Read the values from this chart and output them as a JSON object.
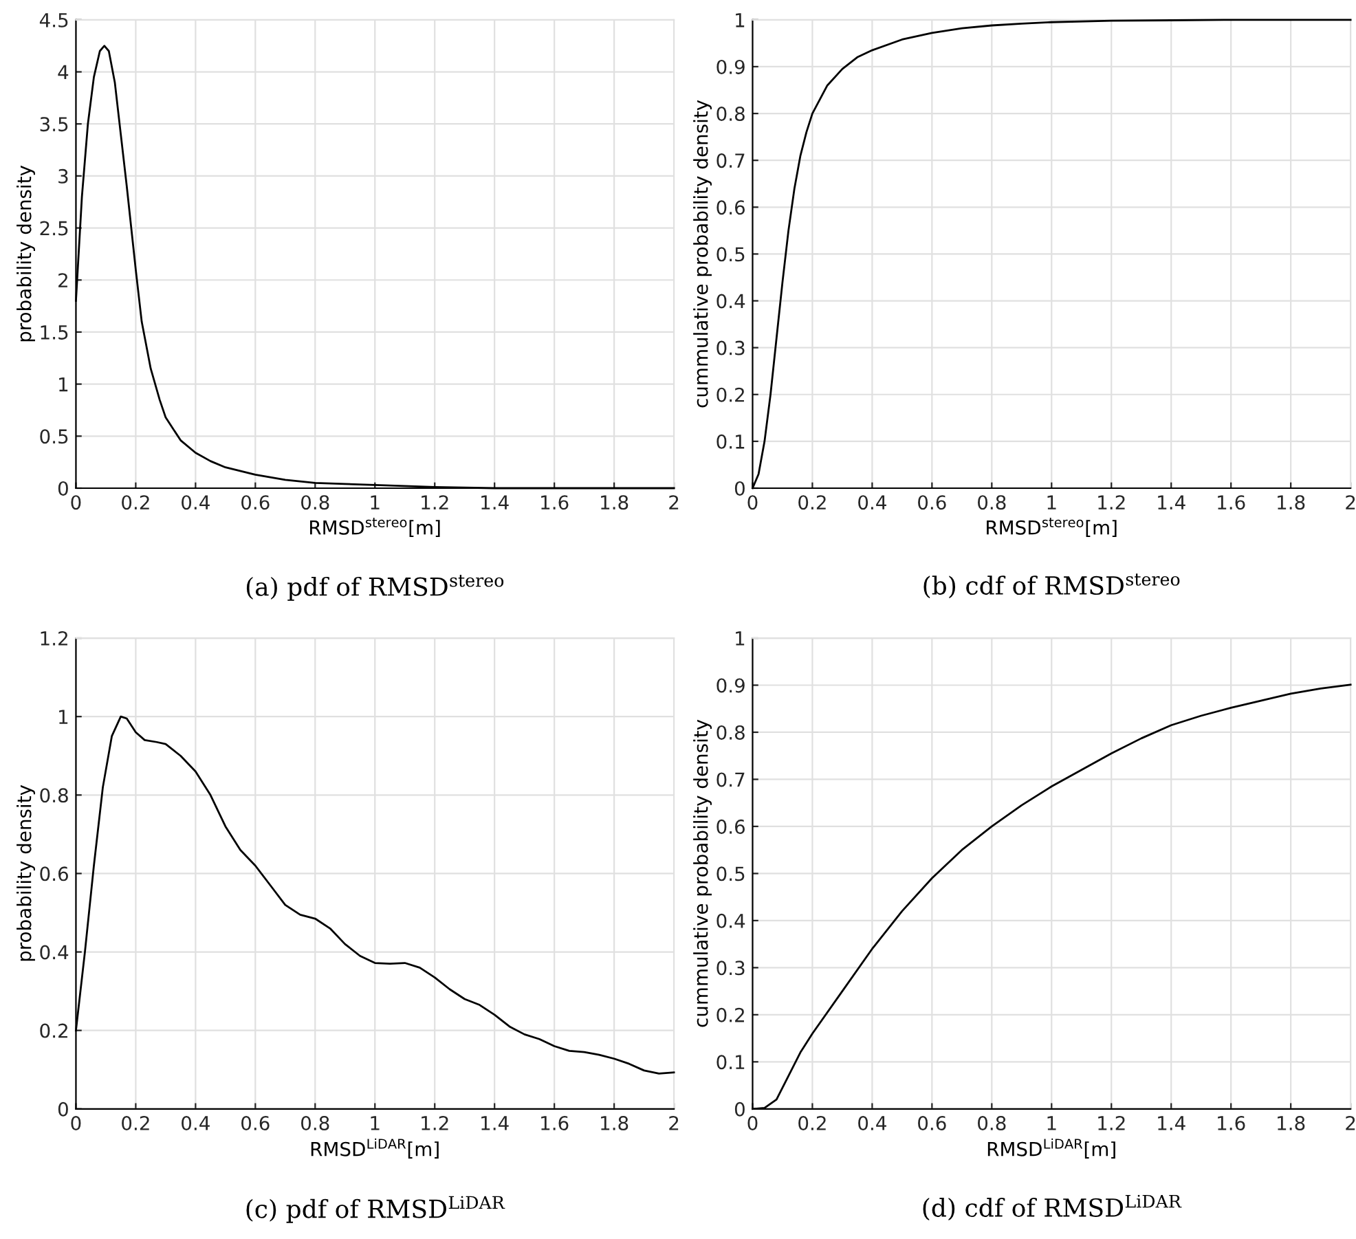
{
  "chart_data": [
    {
      "type": "line",
      "title": "(a) pdf of RMSD$^{stereo}$",
      "xlabel": "RMSD$^{stereo}$[m]",
      "ylabel": "probability density",
      "grid": true,
      "xlim": [
        0,
        2
      ],
      "ylim": [
        0,
        4.5
      ],
      "xticks": [
        0,
        0.2,
        0.4,
        0.6,
        0.8,
        1,
        1.2,
        1.4,
        1.6,
        1.8,
        2
      ],
      "yticks": [
        0,
        0.5,
        1,
        1.5,
        2,
        2.5,
        3,
        3.5,
        4,
        4.5
      ],
      "series": [
        {
          "color": "#000000",
          "x": [
            0,
            0.02,
            0.04,
            0.06,
            0.08,
            0.095,
            0.11,
            0.13,
            0.15,
            0.17,
            0.2,
            0.22,
            0.25,
            0.28,
            0.3,
            0.35,
            0.4,
            0.45,
            0.5,
            0.6,
            0.7,
            0.8,
            0.9,
            1.0,
            1.1,
            1.2,
            1.4,
            1.6,
            1.8,
            2.0
          ],
          "values": [
            1.8,
            2.8,
            3.5,
            3.95,
            4.2,
            4.25,
            4.2,
            3.9,
            3.4,
            2.9,
            2.1,
            1.6,
            1.15,
            0.85,
            0.68,
            0.46,
            0.34,
            0.26,
            0.2,
            0.13,
            0.08,
            0.05,
            0.04,
            0.03,
            0.02,
            0.01,
            0,
            0,
            0,
            0
          ]
        }
      ]
    },
    {
      "type": "line",
      "title": "(b) cdf of RMSD$^{stereo}$",
      "xlabel": "RMSD$^{stereo}$[m]",
      "ylabel": "cummulative probability density",
      "grid": true,
      "xlim": [
        0,
        2
      ],
      "ylim": [
        0,
        1
      ],
      "xticks": [
        0,
        0.2,
        0.4,
        0.6,
        0.8,
        1,
        1.2,
        1.4,
        1.6,
        1.8,
        2
      ],
      "yticks": [
        0,
        0.1,
        0.2,
        0.3,
        0.4,
        0.5,
        0.6,
        0.7,
        0.8,
        0.9,
        1
      ],
      "series": [
        {
          "color": "#000000",
          "x": [
            0,
            0.02,
            0.04,
            0.06,
            0.08,
            0.1,
            0.12,
            0.14,
            0.16,
            0.18,
            0.2,
            0.25,
            0.3,
            0.35,
            0.4,
            0.5,
            0.6,
            0.7,
            0.8,
            0.9,
            1.0,
            1.2,
            1.4,
            1.6,
            2.0
          ],
          "values": [
            0,
            0.03,
            0.1,
            0.2,
            0.32,
            0.44,
            0.55,
            0.64,
            0.71,
            0.76,
            0.8,
            0.86,
            0.895,
            0.92,
            0.935,
            0.958,
            0.972,
            0.982,
            0.988,
            0.992,
            0.995,
            0.998,
            0.999,
            1,
            1
          ]
        }
      ]
    },
    {
      "type": "line",
      "title": "(c) pdf of RMSD$^{LiDAR}$",
      "xlabel": "RMSD$^{LiDAR}$[m]",
      "ylabel": "probability density",
      "grid": true,
      "xlim": [
        0,
        2
      ],
      "ylim": [
        0,
        1.2
      ],
      "xticks": [
        0,
        0.2,
        0.4,
        0.6,
        0.8,
        1,
        1.2,
        1.4,
        1.6,
        1.8,
        2
      ],
      "yticks": [
        0,
        0.2,
        0.4,
        0.6,
        0.8,
        1,
        1.2
      ],
      "series": [
        {
          "color": "#000000",
          "x": [
            0,
            0.03,
            0.06,
            0.09,
            0.12,
            0.15,
            0.17,
            0.2,
            0.23,
            0.27,
            0.3,
            0.35,
            0.4,
            0.45,
            0.5,
            0.55,
            0.6,
            0.65,
            0.7,
            0.75,
            0.8,
            0.85,
            0.9,
            0.95,
            1.0,
            1.05,
            1.1,
            1.15,
            1.2,
            1.25,
            1.3,
            1.35,
            1.4,
            1.45,
            1.5,
            1.55,
            1.6,
            1.65,
            1.7,
            1.75,
            1.8,
            1.85,
            1.9,
            1.95,
            2.0
          ],
          "values": [
            0.2,
            0.4,
            0.62,
            0.82,
            0.95,
            1.0,
            0.995,
            0.96,
            0.94,
            0.935,
            0.93,
            0.9,
            0.86,
            0.8,
            0.72,
            0.66,
            0.62,
            0.57,
            0.52,
            0.495,
            0.485,
            0.46,
            0.42,
            0.39,
            0.372,
            0.37,
            0.372,
            0.36,
            0.335,
            0.305,
            0.28,
            0.265,
            0.24,
            0.21,
            0.19,
            0.178,
            0.16,
            0.148,
            0.145,
            0.138,
            0.128,
            0.115,
            0.098,
            0.09,
            0.093
          ]
        }
      ]
    },
    {
      "type": "line",
      "title": "(d) cdf of RMSD$^{LiDAR}$",
      "xlabel": "RMSD$^{LiDAR}$[m]",
      "ylabel": "cummulative probability density",
      "grid": true,
      "xlim": [
        0,
        2
      ],
      "ylim": [
        0,
        1
      ],
      "xticks": [
        0,
        0.2,
        0.4,
        0.6,
        0.8,
        1,
        1.2,
        1.4,
        1.6,
        1.8,
        2
      ],
      "yticks": [
        0,
        0.1,
        0.2,
        0.3,
        0.4,
        0.5,
        0.6,
        0.7,
        0.8,
        0.9,
        1
      ],
      "series": [
        {
          "color": "#000000",
          "x": [
            0,
            0.04,
            0.08,
            0.12,
            0.16,
            0.2,
            0.3,
            0.4,
            0.5,
            0.6,
            0.7,
            0.8,
            0.9,
            1.0,
            1.1,
            1.2,
            1.3,
            1.4,
            1.5,
            1.6,
            1.7,
            1.8,
            1.9,
            2.0
          ],
          "values": [
            0,
            0.002,
            0.02,
            0.07,
            0.12,
            0.16,
            0.25,
            0.34,
            0.42,
            0.49,
            0.55,
            0.6,
            0.645,
            0.685,
            0.72,
            0.755,
            0.787,
            0.815,
            0.835,
            0.852,
            0.867,
            0.882,
            0.893,
            0.901
          ]
        }
      ]
    }
  ]
}
